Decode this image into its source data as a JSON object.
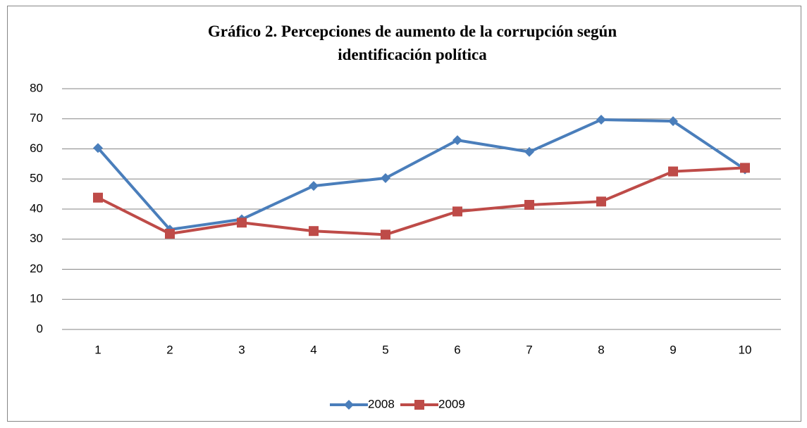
{
  "chart_data": {
    "type": "line",
    "title": "Gráfico 2. Percepciones de aumento de la corrupción según identificación política",
    "categories": [
      "1",
      "2",
      "3",
      "4",
      "5",
      "6",
      "7",
      "8",
      "9",
      "10"
    ],
    "series": [
      {
        "name": "2008",
        "color": "#4a7ebb",
        "marker": "diamond",
        "values": [
          60.3,
          33.2,
          36.6,
          47.7,
          50.3,
          62.9,
          59.0,
          69.7,
          69.2,
          53.2
        ]
      },
      {
        "name": "2009",
        "color": "#be4b48",
        "marker": "square",
        "values": [
          43.8,
          31.8,
          35.5,
          32.7,
          31.5,
          39.2,
          41.4,
          42.5,
          52.5,
          53.7
        ]
      }
    ],
    "ylim": [
      0,
      80
    ],
    "yticks": [
      0,
      10,
      20,
      30,
      40,
      50,
      60,
      70,
      80
    ],
    "grid": true,
    "legend": "bottom"
  }
}
